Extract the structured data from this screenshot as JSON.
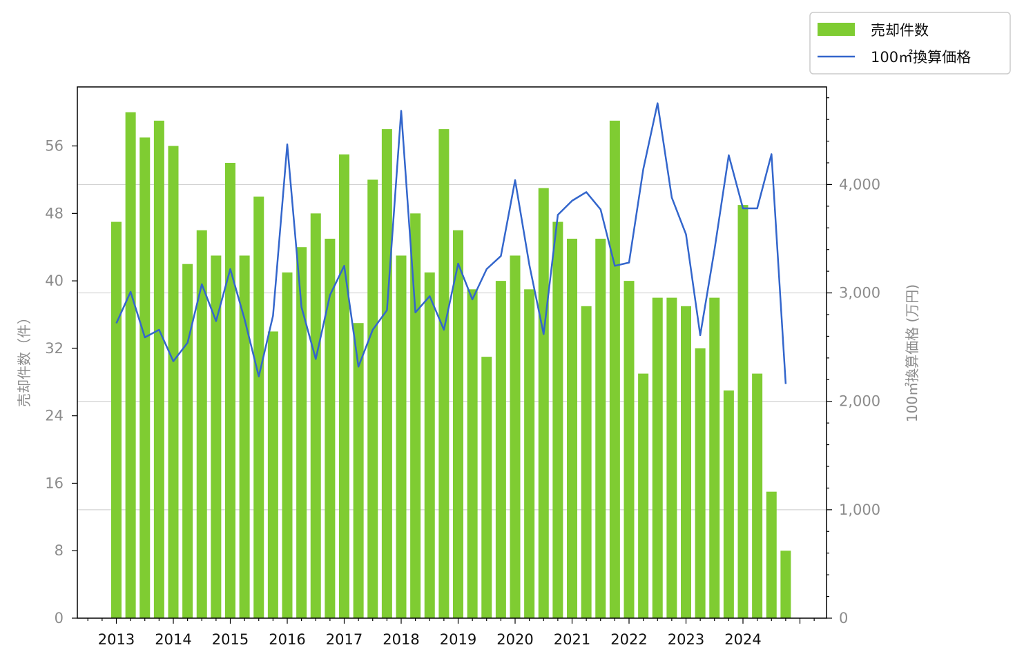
{
  "chart_data": {
    "type": "bar",
    "x_ticks": [
      "2013",
      "2014",
      "2015",
      "2016",
      "2017",
      "2018",
      "2019",
      "2020",
      "2021",
      "2022",
      "2023",
      "2024"
    ],
    "left_axis": {
      "label": "売却件数（件）",
      "ticks": [
        "0",
        "8",
        "16",
        "24",
        "32",
        "40",
        "48",
        "56"
      ],
      "ylim": [
        0,
        63
      ]
    },
    "right_axis": {
      "label": "100㎡換算価格 (万円)",
      "ticks": [
        "0",
        "1,000",
        "2,000",
        "3,000",
        "4,000"
      ],
      "ylim": [
        0,
        4900
      ]
    },
    "legend": {
      "position": "top-right",
      "labels": [
        "売却件数",
        "100㎡換算価格"
      ]
    },
    "colors": {
      "bar": "#7fcc32",
      "line": "#3366cc",
      "grid": "#d3d3d3"
    },
    "grid": "horizontal (right axis)",
    "series": [
      {
        "name": "売却件数",
        "type": "bar",
        "axis": "left",
        "x": [
          2013.0,
          2013.25,
          2013.5,
          2013.75,
          2014.0,
          2014.25,
          2014.5,
          2014.75,
          2015.0,
          2015.25,
          2015.5,
          2015.75,
          2016.0,
          2016.25,
          2016.5,
          2016.75,
          2017.0,
          2017.25,
          2017.5,
          2017.75,
          2018.0,
          2018.25,
          2018.5,
          2018.75,
          2019.0,
          2019.25,
          2019.5,
          2019.75,
          2020.0,
          2020.25,
          2020.5,
          2020.75,
          2021.0,
          2021.25,
          2021.5,
          2021.75,
          2022.0,
          2022.25,
          2022.5,
          2022.75,
          2023.0,
          2023.25,
          2023.5,
          2023.75,
          2024.0,
          2024.25,
          2024.5,
          2024.75
        ],
        "values": [
          47,
          60,
          57,
          59,
          56,
          42,
          46,
          43,
          54,
          43,
          50,
          34,
          41,
          44,
          48,
          45,
          55,
          35,
          52,
          58,
          43,
          48,
          41,
          58,
          46,
          39,
          31,
          40,
          43,
          39,
          51,
          47,
          45,
          37,
          45,
          59,
          40,
          29,
          38,
          38,
          37,
          32,
          38,
          27,
          49,
          29,
          15,
          8
        ]
      },
      {
        "name": "100㎡換算価格",
        "type": "line",
        "axis": "right",
        "x": [
          2013.0,
          2013.25,
          2013.5,
          2013.75,
          2014.0,
          2014.25,
          2014.5,
          2014.75,
          2015.0,
          2015.25,
          2015.5,
          2015.75,
          2016.0,
          2016.25,
          2016.5,
          2016.75,
          2017.0,
          2017.25,
          2017.5,
          2017.75,
          2018.0,
          2018.25,
          2018.5,
          2018.75,
          2019.0,
          2019.25,
          2019.5,
          2019.75,
          2020.0,
          2020.25,
          2020.5,
          2020.75,
          2021.0,
          2021.25,
          2021.5,
          2021.75,
          2022.0,
          2022.25,
          2022.5,
          2022.75,
          2023.0,
          2023.25,
          2023.5,
          2023.75,
          2024.0,
          2024.25,
          2024.5,
          2024.75
        ],
        "values": [
          2720,
          3010,
          2590,
          2660,
          2370,
          2540,
          3080,
          2740,
          3220,
          2760,
          2230,
          2790,
          4370,
          2870,
          2390,
          2980,
          3250,
          2320,
          2660,
          2840,
          4680,
          2820,
          2970,
          2660,
          3270,
          2940,
          3220,
          3340,
          4040,
          3260,
          2620,
          3720,
          3850,
          3930,
          3770,
          3250,
          3280,
          4140,
          4750,
          3880,
          3540,
          2610,
          3400,
          4270,
          3780,
          3780,
          4280,
          2160
        ]
      }
    ]
  }
}
